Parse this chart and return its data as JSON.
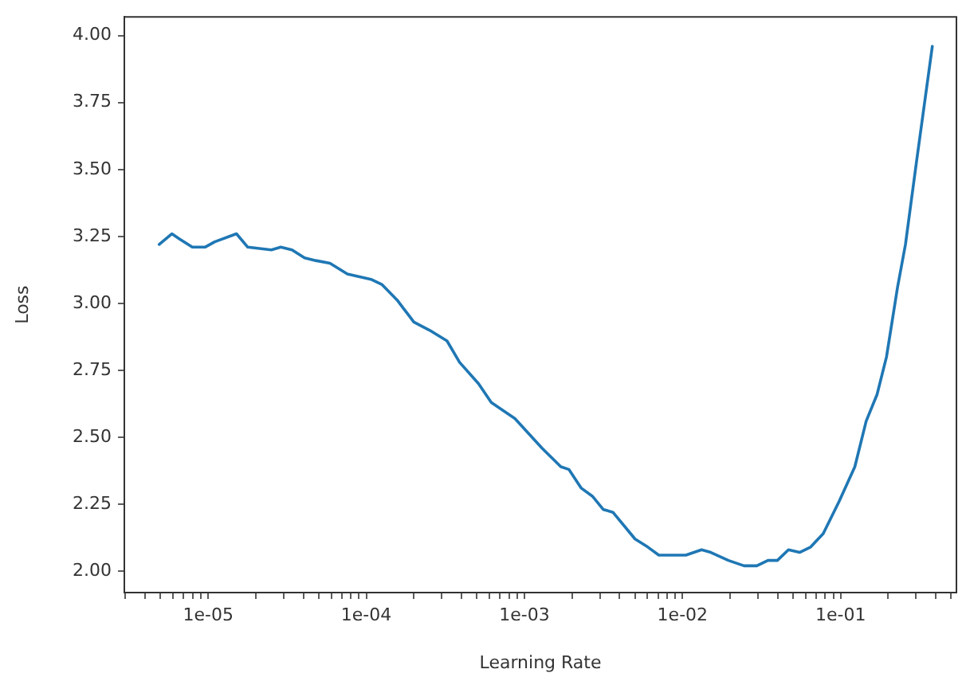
{
  "chart_data": {
    "type": "line",
    "xlabel": "Learning Rate",
    "ylabel": "Loss",
    "log": "x",
    "grid": false,
    "legend": false,
    "marker": "none",
    "line_style": "solid",
    "x": [
      4.9e-06,
      5.89e-06,
      6.61e-06,
      7.94e-06,
      9.55e-06,
      1.1e-05,
      1.51e-05,
      1.78e-05,
      2.51e-05,
      2.88e-05,
      3.39e-05,
      4.07e-05,
      4.79e-05,
      5.89e-05,
      7.59e-05,
      0.000107,
      0.000126,
      0.000158,
      0.0002,
      0.000251,
      0.000324,
      0.000389,
      0.000513,
      0.000617,
      0.000871,
      0.00129,
      0.0017,
      0.00191,
      0.00229,
      0.00269,
      0.00316,
      0.00363,
      0.00501,
      0.00603,
      0.00708,
      0.0105,
      0.0132,
      0.0151,
      0.0195,
      0.0245,
      0.0295,
      0.0347,
      0.0398,
      0.0468,
      0.055,
      0.0646,
      0.0776,
      0.0977,
      0.123,
      0.145,
      0.17,
      0.195,
      0.229,
      0.257,
      0.302,
      0.38
    ],
    "series": [
      {
        "color": "#1f77b4",
        "values": [
          3.22,
          3.26,
          3.24,
          3.21,
          3.21,
          3.23,
          3.26,
          3.21,
          3.2,
          3.21,
          3.2,
          3.17,
          3.16,
          3.15,
          3.11,
          3.09,
          3.07,
          3.01,
          2.93,
          2.9,
          2.86,
          2.78,
          2.7,
          2.63,
          2.57,
          2.46,
          2.39,
          2.38,
          2.31,
          2.28,
          2.23,
          2.22,
          2.12,
          2.09,
          2.06,
          2.06,
          2.08,
          2.07,
          2.04,
          2.02,
          2.02,
          2.04,
          2.04,
          2.08,
          2.07,
          2.09,
          2.14,
          2.26,
          2.39,
          2.56,
          2.66,
          2.8,
          3.06,
          3.22,
          3.53,
          3.96
        ]
      }
    ],
    "xlim": [
      2.95e-06,
      0.54
    ],
    "xticks": [
      {
        "value": 3e-06,
        "label": null
      },
      {
        "value": 4e-06,
        "label": null
      },
      {
        "value": 5e-06,
        "label": null
      },
      {
        "value": 6e-06,
        "label": null
      },
      {
        "value": 7e-06,
        "label": null
      },
      {
        "value": 8e-06,
        "label": null
      },
      {
        "value": 9e-06,
        "label": null
      },
      {
        "value": 1e-05,
        "label": "1e-05"
      },
      {
        "value": 2e-05,
        "label": null
      },
      {
        "value": 3e-05,
        "label": null
      },
      {
        "value": 4e-05,
        "label": null
      },
      {
        "value": 5e-05,
        "label": null
      },
      {
        "value": 6e-05,
        "label": null
      },
      {
        "value": 7e-05,
        "label": null
      },
      {
        "value": 8e-05,
        "label": null
      },
      {
        "value": 9e-05,
        "label": null
      },
      {
        "value": 0.0001,
        "label": "1e-04"
      },
      {
        "value": 0.0002,
        "label": null
      },
      {
        "value": 0.0003,
        "label": null
      },
      {
        "value": 0.0004,
        "label": null
      },
      {
        "value": 0.0005,
        "label": null
      },
      {
        "value": 0.0006,
        "label": null
      },
      {
        "value": 0.0007,
        "label": null
      },
      {
        "value": 0.0008,
        "label": null
      },
      {
        "value": 0.0009,
        "label": null
      },
      {
        "value": 0.001,
        "label": "1e-03"
      },
      {
        "value": 0.002,
        "label": null
      },
      {
        "value": 0.003,
        "label": null
      },
      {
        "value": 0.004,
        "label": null
      },
      {
        "value": 0.005,
        "label": null
      },
      {
        "value": 0.006,
        "label": null
      },
      {
        "value": 0.007,
        "label": null
      },
      {
        "value": 0.008,
        "label": null
      },
      {
        "value": 0.009,
        "label": null
      },
      {
        "value": 0.01,
        "label": "1e-02"
      },
      {
        "value": 0.02,
        "label": null
      },
      {
        "value": 0.03,
        "label": null
      },
      {
        "value": 0.04,
        "label": null
      },
      {
        "value": 0.05,
        "label": null
      },
      {
        "value": 0.06,
        "label": null
      },
      {
        "value": 0.07,
        "label": null
      },
      {
        "value": 0.08,
        "label": null
      },
      {
        "value": 0.09,
        "label": null
      },
      {
        "value": 0.1,
        "label": "1e-01"
      },
      {
        "value": 0.2,
        "label": null
      },
      {
        "value": 0.3,
        "label": null
      },
      {
        "value": 0.4,
        "label": null
      },
      {
        "value": 0.5,
        "label": null
      }
    ],
    "ylim": [
      1.92,
      4.07
    ],
    "yticks": [
      {
        "value": 2,
        "label": "2.00"
      },
      {
        "value": 2.25,
        "label": "2.25"
      },
      {
        "value": 2.5,
        "label": "2.50"
      },
      {
        "value": 2.75,
        "label": "2.75"
      },
      {
        "value": 3,
        "label": "3.00"
      },
      {
        "value": 3.25,
        "label": "3.25"
      },
      {
        "value": 3.5,
        "label": "3.50"
      },
      {
        "value": 3.75,
        "label": "3.75"
      },
      {
        "value": 4,
        "label": "4.00"
      }
    ]
  }
}
